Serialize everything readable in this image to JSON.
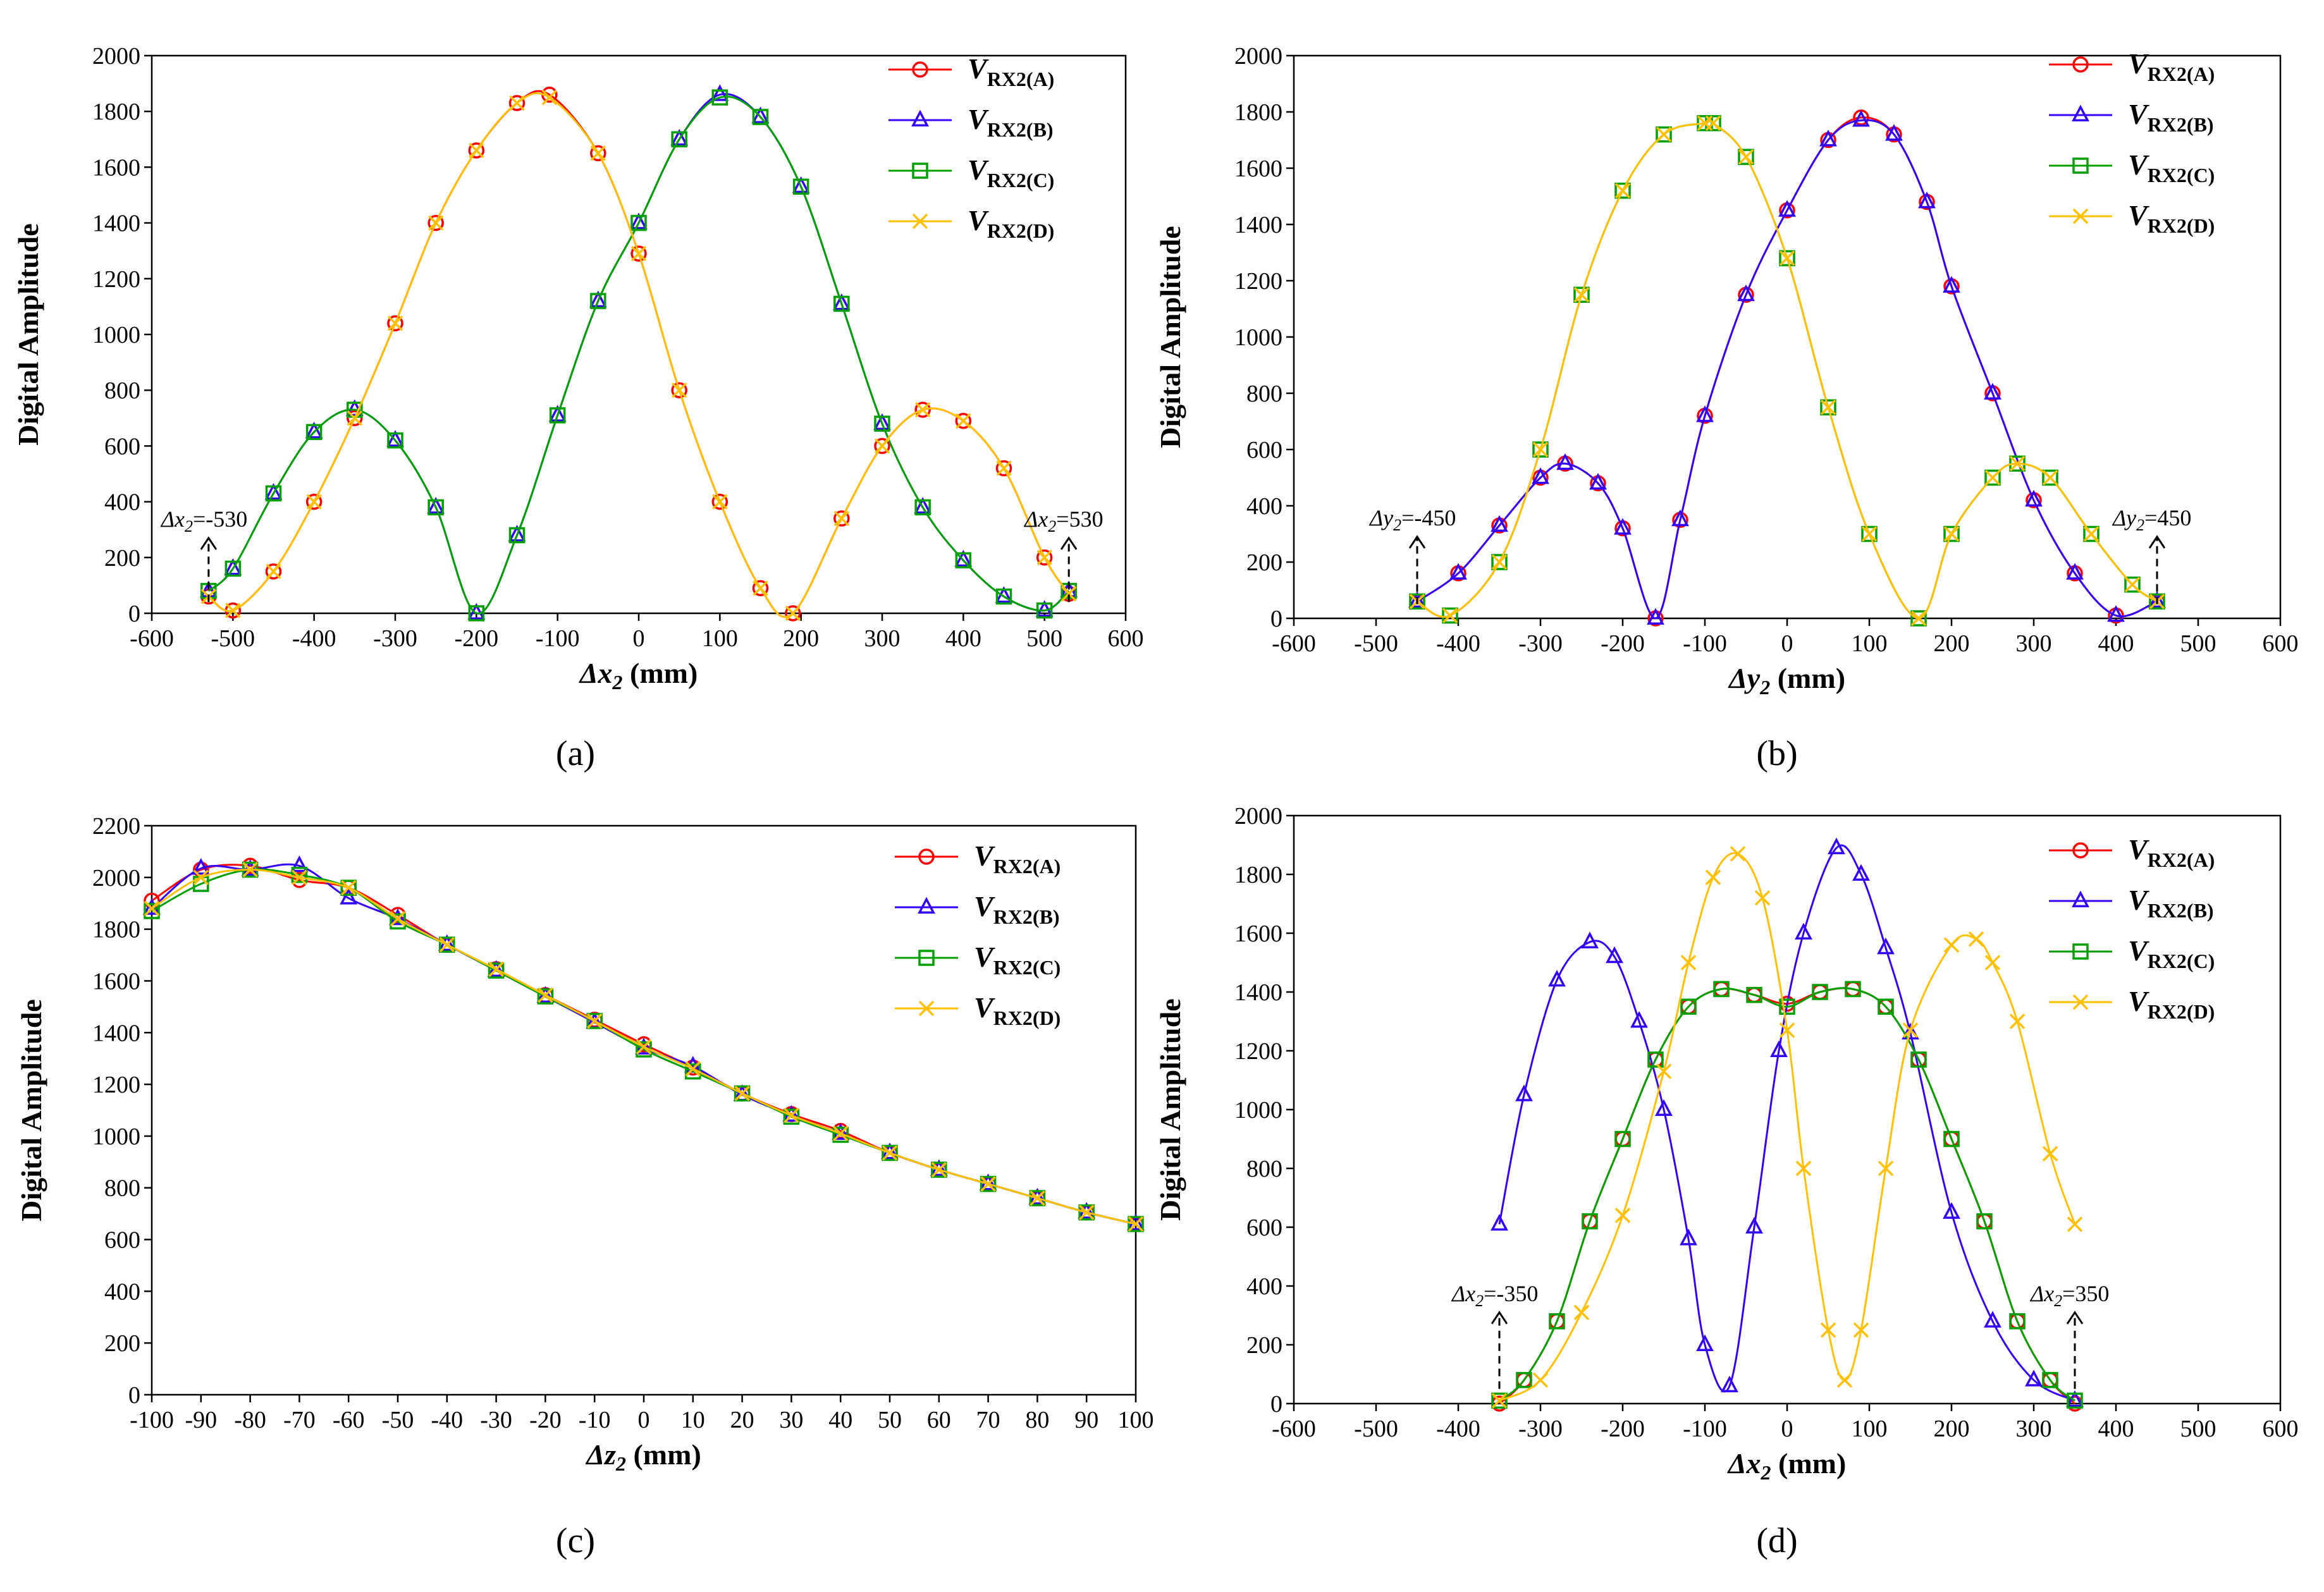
{
  "chart_data": [
    {
      "id": "a",
      "type": "line",
      "panel_label": "(a)",
      "xlabel": {
        "var": "Δx",
        "sub": "2",
        "unit": " (mm)"
      },
      "ylabel": "Digital Amplitude",
      "xlim": [
        -600,
        600
      ],
      "xticks": [
        -600,
        -500,
        -400,
        -300,
        -200,
        -100,
        0,
        100,
        200,
        300,
        400,
        500,
        600
      ],
      "ylim": [
        0,
        2000
      ],
      "yticks": [
        0,
        200,
        400,
        600,
        800,
        1000,
        1200,
        1400,
        1600,
        1800,
        2000
      ],
      "grid": false,
      "legend_position": "top-right",
      "annotations": [
        {
          "var": "Δx",
          "sub": "2",
          "text": "=-530",
          "x": -530
        },
        {
          "var": "Δx",
          "sub": "2",
          "text": "=530",
          "x": 530
        }
      ],
      "series": [
        {
          "name": "V",
          "sub": "RX2(A)",
          "color": "#ff0000",
          "marker": "circle",
          "x": [
            -530,
            -500,
            -450,
            -400,
            -350,
            -300,
            -250,
            -200,
            -150,
            -110,
            -50,
            0,
            50,
            100,
            150,
            190,
            250,
            300,
            350,
            400,
            450,
            500,
            530
          ],
          "y": [
            60,
            10,
            150,
            400,
            700,
            1040,
            1400,
            1660,
            1830,
            1860,
            1650,
            1290,
            800,
            400,
            90,
            0,
            340,
            600,
            730,
            690,
            520,
            200,
            70
          ]
        },
        {
          "name": "V",
          "sub": "RX2(B)",
          "color": "#3300ff",
          "marker": "triangle",
          "x": [
            -530,
            -500,
            -450,
            -400,
            -350,
            -300,
            -250,
            -200,
            -150,
            -100,
            -50,
            0,
            50,
            100,
            150,
            200,
            250,
            300,
            350,
            400,
            450,
            500,
            530
          ],
          "y": [
            80,
            160,
            430,
            650,
            730,
            620,
            380,
            0,
            280,
            710,
            1120,
            1400,
            1700,
            1860,
            1780,
            1530,
            1110,
            680,
            380,
            190,
            60,
            10,
            80
          ]
        },
        {
          "name": "V",
          "sub": "RX2(C)",
          "color": "#00a000",
          "marker": "square",
          "x": [
            -530,
            -500,
            -450,
            -400,
            -350,
            -300,
            -250,
            -200,
            -150,
            -100,
            -50,
            0,
            50,
            100,
            150,
            200,
            250,
            300,
            350,
            400,
            450,
            500,
            530
          ],
          "y": [
            80,
            160,
            430,
            650,
            730,
            620,
            380,
            0,
            280,
            710,
            1120,
            1400,
            1700,
            1850,
            1780,
            1530,
            1110,
            680,
            380,
            190,
            60,
            10,
            80
          ]
        },
        {
          "name": "V",
          "sub": "RX2(D)",
          "color": "#ffc000",
          "marker": "x",
          "x": [
            -530,
            -500,
            -450,
            -400,
            -350,
            -300,
            -250,
            -200,
            -150,
            -110,
            -50,
            0,
            50,
            100,
            150,
            190,
            250,
            300,
            350,
            400,
            450,
            500,
            530
          ],
          "y": [
            60,
            10,
            150,
            400,
            700,
            1040,
            1400,
            1660,
            1830,
            1850,
            1650,
            1290,
            800,
            400,
            90,
            0,
            340,
            600,
            730,
            690,
            520,
            200,
            70
          ]
        }
      ]
    },
    {
      "id": "b",
      "type": "line",
      "panel_label": "(b)",
      "xlabel": {
        "var": "Δy",
        "sub": "2",
        "unit": " (mm)"
      },
      "ylabel": "Digital Amplitude",
      "xlim": [
        -600,
        600
      ],
      "xticks": [
        -600,
        -500,
        -400,
        -300,
        -200,
        -100,
        0,
        100,
        200,
        300,
        400,
        500,
        600
      ],
      "ylim": [
        0,
        2000
      ],
      "yticks": [
        0,
        200,
        400,
        600,
        800,
        1000,
        1200,
        1400,
        1600,
        1800,
        2000
      ],
      "grid": false,
      "legend_position": "top-right",
      "annotations": [
        {
          "var": "Δy",
          "sub": "2",
          "text": "=-450",
          "x": -450
        },
        {
          "var": "Δy",
          "sub": "2",
          "text": "=450",
          "x": 450
        }
      ],
      "series": [
        {
          "name": "V",
          "sub": "RX2(A)",
          "color": "#ff0000",
          "marker": "circle",
          "x": [
            -450,
            -400,
            -350,
            -300,
            -270,
            -230,
            -200,
            -160,
            -130,
            -100,
            -50,
            0,
            50,
            90,
            130,
            170,
            200,
            250,
            300,
            350,
            400,
            450
          ],
          "y": [
            60,
            160,
            330,
            500,
            550,
            480,
            320,
            0,
            350,
            720,
            1150,
            1450,
            1700,
            1780,
            1720,
            1480,
            1180,
            800,
            420,
            160,
            10,
            60
          ]
        },
        {
          "name": "V",
          "sub": "RX2(B)",
          "color": "#3300ff",
          "marker": "triangle",
          "x": [
            -450,
            -400,
            -350,
            -300,
            -270,
            -230,
            -200,
            -160,
            -130,
            -100,
            -50,
            0,
            50,
            90,
            130,
            170,
            200,
            250,
            300,
            350,
            400,
            450
          ],
          "y": [
            60,
            160,
            330,
            500,
            550,
            480,
            320,
            0,
            350,
            720,
            1150,
            1450,
            1700,
            1770,
            1720,
            1480,
            1180,
            800,
            420,
            160,
            10,
            60
          ]
        },
        {
          "name": "V",
          "sub": "RX2(C)",
          "color": "#00a000",
          "marker": "square",
          "x": [
            -450,
            -410,
            -350,
            -300,
            -250,
            -200,
            -150,
            -100,
            -90,
            -50,
            0,
            50,
            100,
            160,
            200,
            250,
            280,
            320,
            370,
            420,
            450
          ],
          "y": [
            60,
            10,
            200,
            600,
            1150,
            1520,
            1720,
            1760,
            1760,
            1640,
            1280,
            750,
            300,
            0,
            300,
            500,
            550,
            500,
            300,
            120,
            60
          ]
        },
        {
          "name": "V",
          "sub": "RX2(D)",
          "color": "#ffc000",
          "marker": "x",
          "x": [
            -450,
            -410,
            -350,
            -300,
            -250,
            -200,
            -150,
            -100,
            -90,
            -50,
            0,
            50,
            100,
            160,
            200,
            250,
            280,
            320,
            370,
            420,
            450
          ],
          "y": [
            60,
            10,
            200,
            600,
            1150,
            1520,
            1720,
            1760,
            1760,
            1640,
            1280,
            750,
            300,
            0,
            300,
            500,
            550,
            500,
            300,
            120,
            60
          ]
        }
      ]
    },
    {
      "id": "c",
      "type": "line",
      "panel_label": "(c)",
      "xlabel": {
        "var": "Δz",
        "sub": "2",
        "unit": " (mm)"
      },
      "ylabel": "Digital Amplitude",
      "xlim": [
        -100,
        100
      ],
      "xticks": [
        -100,
        -90,
        -80,
        -70,
        -60,
        -50,
        -40,
        -30,
        -20,
        -10,
        0,
        10,
        20,
        30,
        40,
        50,
        60,
        70,
        80,
        90,
        100
      ],
      "ylim": [
        0,
        2200
      ],
      "yticks": [
        0,
        200,
        400,
        600,
        800,
        1000,
        1200,
        1400,
        1600,
        1800,
        2000,
        2200
      ],
      "grid": false,
      "legend_position": "top-right",
      "annotations": [],
      "series": [
        {
          "name": "V",
          "sub": "RX2(A)",
          "color": "#ff0000",
          "marker": "circle",
          "x": [
            -100,
            -90,
            -80,
            -70,
            -60,
            -50,
            -40,
            -30,
            -20,
            -10,
            0,
            10,
            20,
            30,
            40,
            50,
            60,
            70,
            80,
            90,
            100
          ],
          "y": [
            1910,
            2030,
            2045,
            1990,
            1960,
            1855,
            1740,
            1645,
            1545,
            1450,
            1355,
            1265,
            1165,
            1085,
            1020,
            935,
            870,
            815,
            760,
            705,
            660
          ]
        },
        {
          "name": "V",
          "sub": "RX2(B)",
          "color": "#3300ff",
          "marker": "triangle",
          "x": [
            -100,
            -90,
            -80,
            -70,
            -60,
            -50,
            -40,
            -30,
            -20,
            -10,
            0,
            10,
            20,
            30,
            40,
            50,
            60,
            70,
            80,
            90,
            100
          ],
          "y": [
            1880,
            2035,
            2030,
            2045,
            1920,
            1840,
            1740,
            1640,
            1540,
            1440,
            1340,
            1270,
            1160,
            1080,
            1010,
            935,
            870,
            815,
            760,
            705,
            660
          ]
        },
        {
          "name": "V",
          "sub": "RX2(C)",
          "color": "#00a000",
          "marker": "square",
          "x": [
            -100,
            -90,
            -80,
            -70,
            -60,
            -50,
            -40,
            -30,
            -20,
            -10,
            0,
            10,
            20,
            30,
            40,
            50,
            60,
            70,
            80,
            90,
            100
          ],
          "y": [
            1870,
            1975,
            2030,
            2010,
            1960,
            1830,
            1740,
            1640,
            1540,
            1445,
            1335,
            1250,
            1165,
            1075,
            1005,
            935,
            870,
            815,
            760,
            705,
            660
          ]
        },
        {
          "name": "V",
          "sub": "RX2(D)",
          "color": "#ffc000",
          "marker": "x",
          "x": [
            -100,
            -90,
            -80,
            -70,
            -60,
            -50,
            -40,
            -30,
            -20,
            -10,
            0,
            10,
            20,
            30,
            40,
            50,
            60,
            70,
            80,
            90,
            100
          ],
          "y": [
            1880,
            2000,
            2030,
            2000,
            1960,
            1840,
            1740,
            1645,
            1545,
            1445,
            1345,
            1260,
            1165,
            1080,
            1010,
            935,
            870,
            815,
            760,
            705,
            660
          ]
        }
      ]
    },
    {
      "id": "d",
      "type": "line",
      "panel_label": "(d)",
      "xlabel": {
        "var": "Δx",
        "sub": "2",
        "unit": " (mm)"
      },
      "ylabel": "Digital Amplitude",
      "xlim": [
        -600,
        600
      ],
      "xticks": [
        -600,
        -500,
        -400,
        -300,
        -200,
        -100,
        0,
        100,
        200,
        300,
        400,
        500,
        600
      ],
      "ylim": [
        0,
        2000
      ],
      "yticks": [
        0,
        200,
        400,
        600,
        800,
        1000,
        1200,
        1400,
        1600,
        1800,
        2000
      ],
      "grid": false,
      "legend_position": "top-right",
      "annotations": [
        {
          "var": "Δx",
          "sub": "2",
          "text": "=-350",
          "x": -350
        },
        {
          "var": "Δx",
          "sub": "2",
          "text": "=350",
          "x": 350
        }
      ],
      "series": [
        {
          "name": "V",
          "sub": "RX2(A)",
          "color": "#ff0000",
          "marker": "circle",
          "x": [
            -350,
            -320,
            -280,
            -240,
            -200,
            -160,
            -120,
            -80,
            -40,
            0,
            40,
            80,
            120,
            160,
            200,
            240,
            280,
            320,
            350
          ],
          "y": [
            0,
            80,
            280,
            620,
            900,
            1170,
            1350,
            1410,
            1390,
            1360,
            1400,
            1410,
            1350,
            1170,
            900,
            620,
            280,
            80,
            0
          ]
        },
        {
          "name": "V",
          "sub": "RX2(B)",
          "color": "#3300ff",
          "marker": "triangle",
          "x": [
            -350,
            -320,
            -280,
            -240,
            -210,
            -180,
            -150,
            -120,
            -100,
            -70,
            -40,
            -10,
            20,
            60,
            90,
            120,
            150,
            200,
            250,
            300,
            350
          ],
          "y": [
            610,
            1050,
            1440,
            1570,
            1520,
            1300,
            1000,
            560,
            200,
            60,
            600,
            1200,
            1600,
            1890,
            1800,
            1550,
            1260,
            650,
            280,
            80,
            10
          ]
        },
        {
          "name": "V",
          "sub": "RX2(C)",
          "color": "#00a000",
          "marker": "square",
          "x": [
            -350,
            -320,
            -280,
            -240,
            -200,
            -160,
            -120,
            -80,
            -40,
            0,
            40,
            80,
            120,
            160,
            200,
            240,
            280,
            320,
            350
          ],
          "y": [
            10,
            80,
            280,
            620,
            900,
            1170,
            1350,
            1410,
            1390,
            1350,
            1400,
            1410,
            1350,
            1170,
            900,
            620,
            280,
            80,
            10
          ]
        },
        {
          "name": "V",
          "sub": "RX2(D)",
          "color": "#ffc000",
          "marker": "x",
          "x": [
            -350,
            -300,
            -250,
            -200,
            -150,
            -120,
            -90,
            -60,
            -30,
            0,
            20,
            50,
            70,
            90,
            120,
            150,
            200,
            230,
            250,
            280,
            320,
            350
          ],
          "y": [
            10,
            80,
            310,
            640,
            1130,
            1500,
            1790,
            1870,
            1720,
            1270,
            800,
            250,
            80,
            250,
            800,
            1270,
            1560,
            1580,
            1500,
            1300,
            850,
            610
          ]
        }
      ]
    }
  ]
}
